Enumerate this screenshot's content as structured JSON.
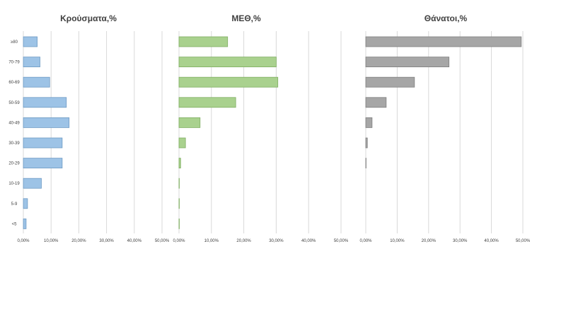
{
  "chart_data": {
    "type": "bar",
    "orientation": "horizontal",
    "categories": [
      "≥80",
      "70-79",
      "60-69",
      "50-59",
      "40-49",
      "30-39",
      "20-29",
      "10-19",
      "5-9",
      "<5"
    ],
    "x_ticks": [
      "0,00%",
      "10,00%",
      "20,00%",
      "30,00%",
      "40,00%",
      "50,00%"
    ],
    "xlim": [
      0,
      50
    ],
    "grid": "vertical",
    "panels": [
      {
        "title": "Κρούσματα,%",
        "color": "#9dc3e6",
        "stroke": "#6f9bc4",
        "values": [
          5.0,
          6.0,
          9.5,
          15.5,
          16.5,
          14.0,
          14.0,
          6.5,
          1.5,
          1.0
        ]
      },
      {
        "title": "ΜΕΘ,%",
        "color": "#a9d18e",
        "stroke": "#7fae62",
        "values": [
          15.0,
          30.0,
          30.5,
          17.5,
          6.5,
          2.0,
          0.5,
          0.1,
          0.1,
          0.1
        ]
      },
      {
        "title": "Θάνατοι,%",
        "color": "#a6a6a6",
        "stroke": "#7f7f7f",
        "values": [
          49.5,
          26.5,
          15.5,
          6.5,
          2.0,
          0.5,
          0.1,
          0.0,
          0.0,
          0.0
        ]
      }
    ]
  }
}
